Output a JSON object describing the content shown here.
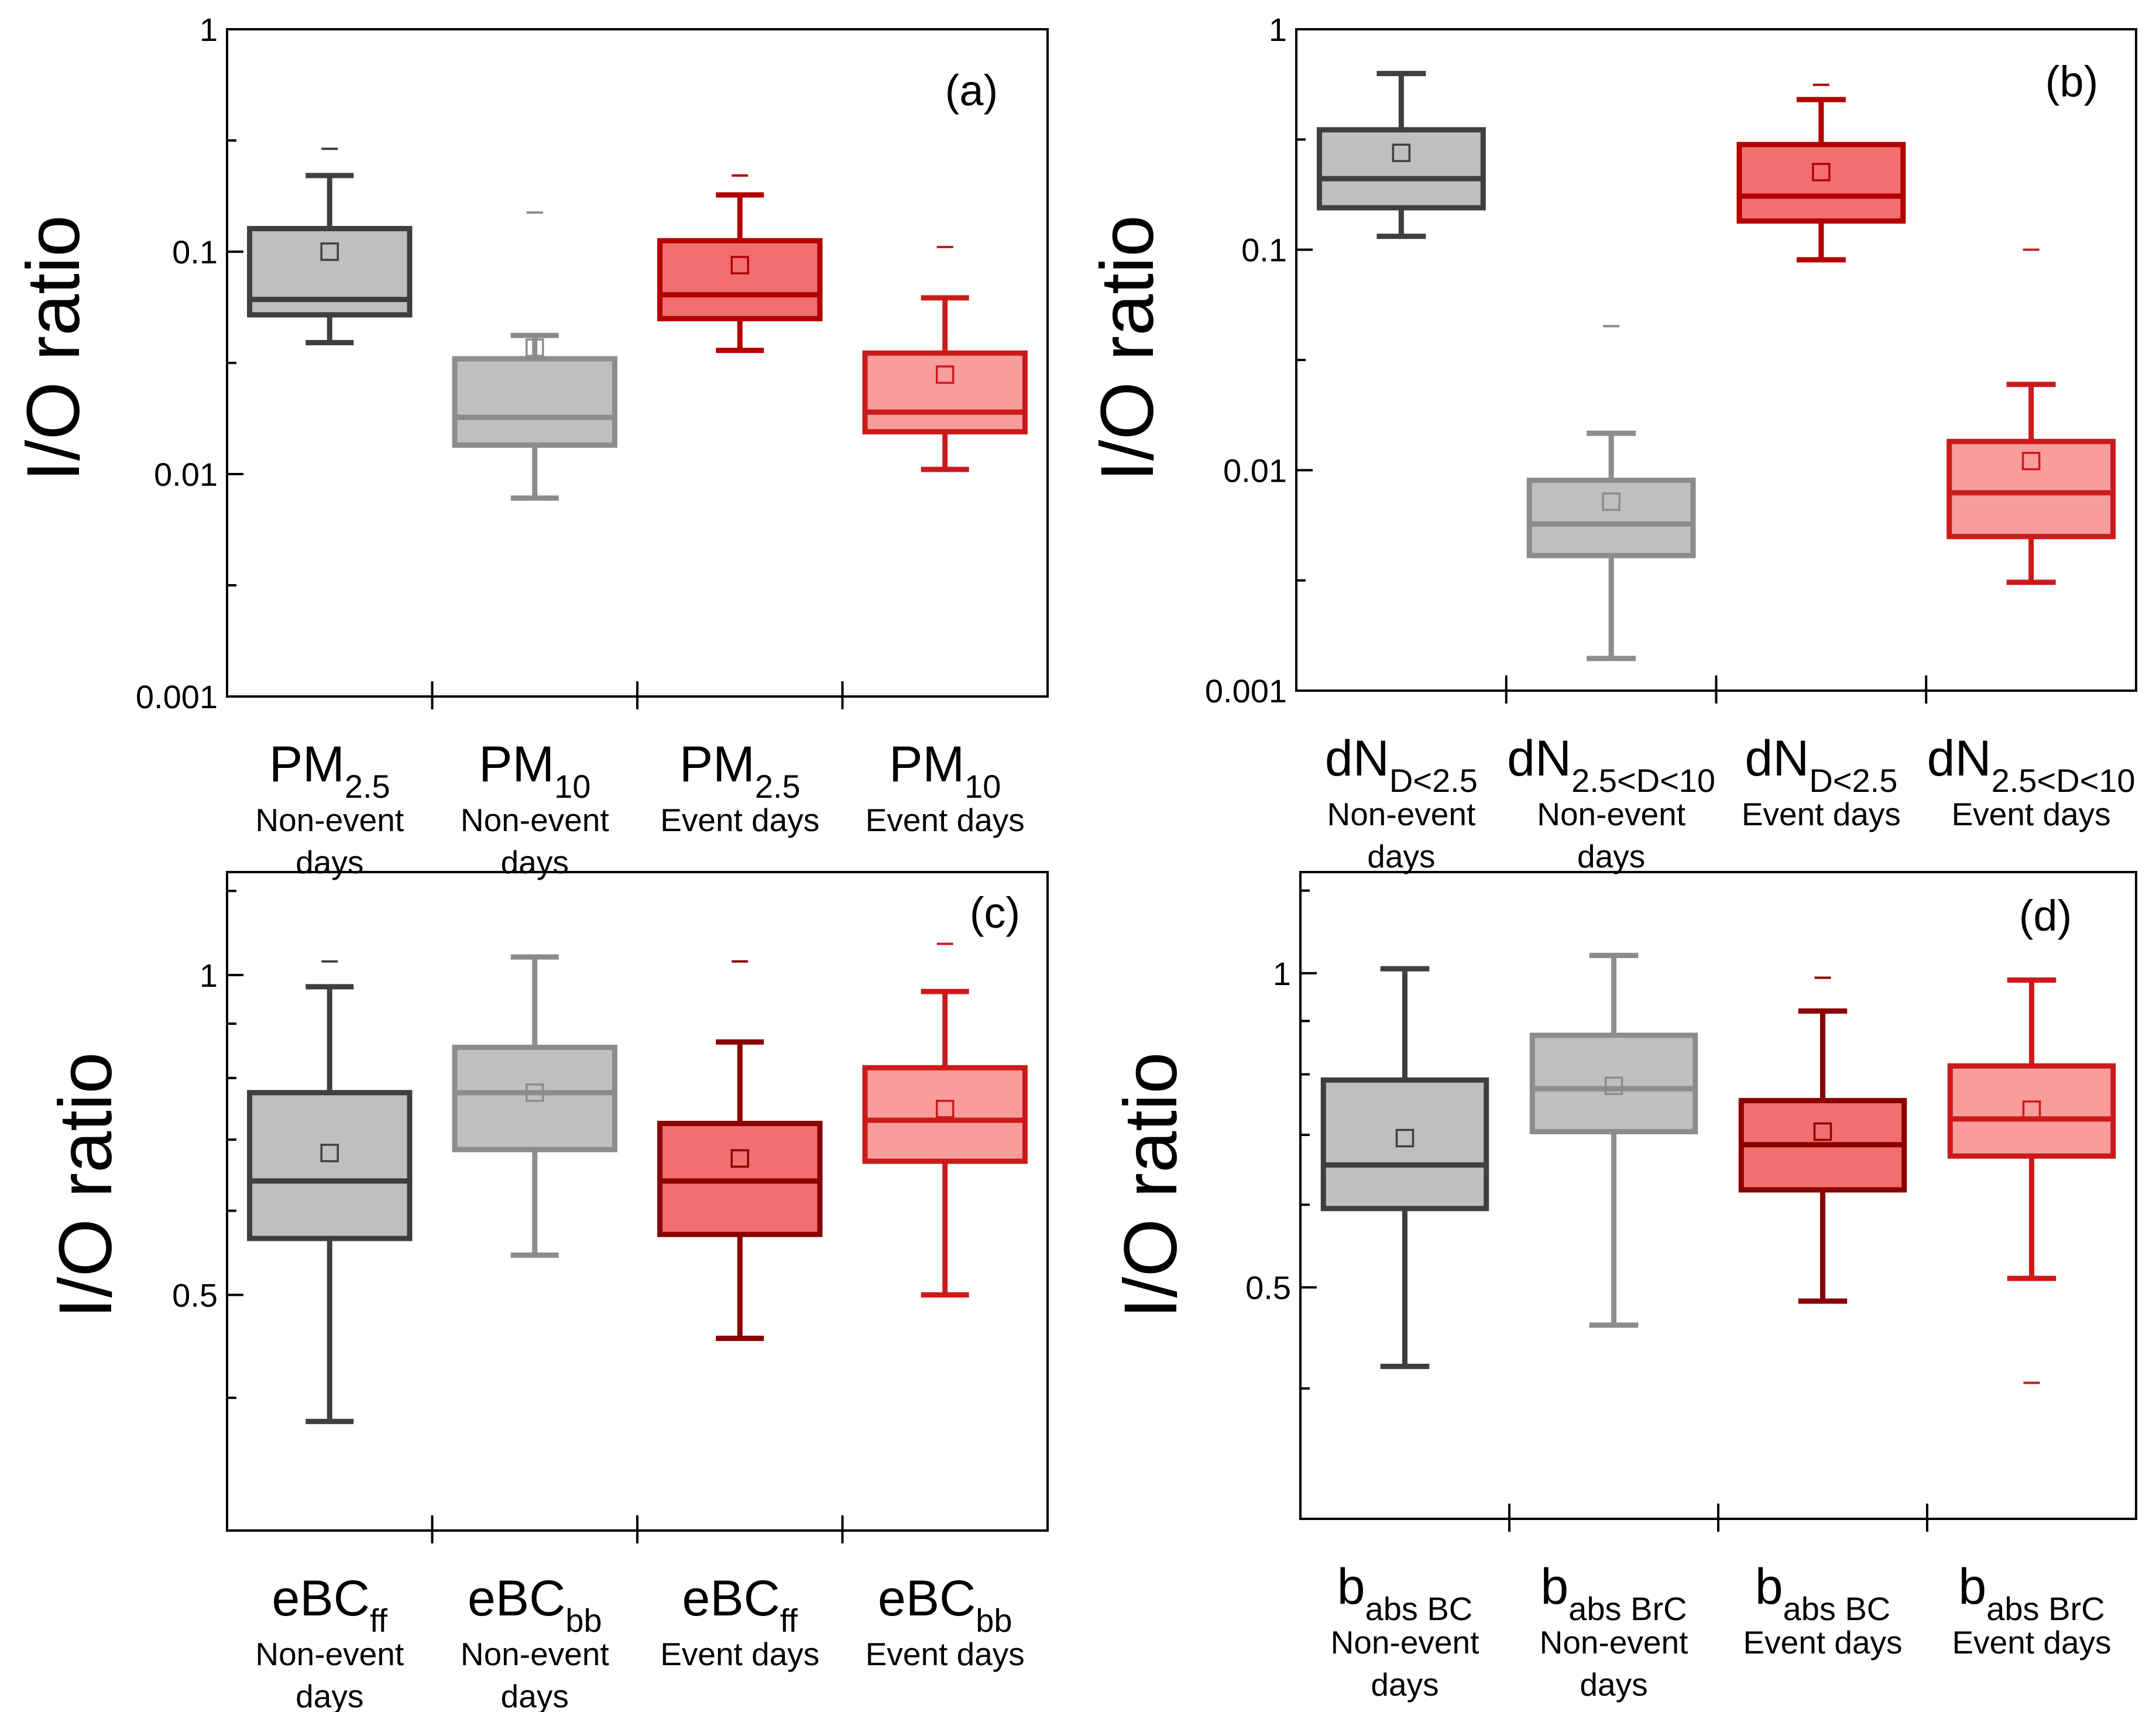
{
  "chart_data": [
    {
      "id": "a",
      "type": "box",
      "panel_label": "(a)",
      "ylabel": "I/O ratio",
      "yscale": "log",
      "ylim": [
        0.001,
        1
      ],
      "yticks": [
        {
          "value": 0.001,
          "label": "0.001"
        },
        {
          "value": 0.01,
          "label": "0.01"
        },
        {
          "value": 0.1,
          "label": "0.1"
        },
        {
          "value": 1,
          "label": "1"
        }
      ],
      "boxes": [
        {
          "main": "PM",
          "sub": "2.5",
          "desc": [
            "Non-event",
            "days"
          ],
          "color": "#3f3f3f",
          "fill": "#bfbfbf",
          "whisker_low": 0.039,
          "q1": 0.052,
          "median": 0.061,
          "q3": 0.127,
          "whisker_high": 0.22,
          "mean": 0.1,
          "outlier_high": 0.29
        },
        {
          "main": "PM",
          "sub": "10",
          "desc": [
            "Non-event",
            "days"
          ],
          "color": "#8c8c8c",
          "fill": "#bfbfbf",
          "whisker_low": 0.0078,
          "q1": 0.0135,
          "median": 0.018,
          "q3": 0.033,
          "whisker_high": 0.042,
          "mean": 0.037,
          "outlier_high": 0.15
        },
        {
          "main": "PM",
          "sub": "2.5",
          "desc": [
            "Event days"
          ],
          "color": "#b30000",
          "fill": "#f26f6f",
          "whisker_low": 0.036,
          "q1": 0.05,
          "median": 0.064,
          "q3": 0.112,
          "whisker_high": 0.18,
          "mean": 0.087,
          "outlier_high": 0.22
        },
        {
          "main": "PM",
          "sub": "10",
          "desc": [
            "Event days"
          ],
          "color": "#cc1a1a",
          "fill": "#f89c9c",
          "whisker_low": 0.0105,
          "q1": 0.0155,
          "median": 0.019,
          "q3": 0.035,
          "whisker_high": 0.062,
          "mean": 0.028,
          "outlier_high": 0.105
        }
      ]
    },
    {
      "id": "b",
      "type": "box",
      "panel_label": "(b)",
      "ylabel": "I/O ratio",
      "yscale": "log",
      "ylim": [
        0.001,
        1
      ],
      "yticks": [
        {
          "value": 0.001,
          "label": "0.001"
        },
        {
          "value": 0.01,
          "label": "0.01"
        },
        {
          "value": 0.1,
          "label": "0.1"
        },
        {
          "value": 1,
          "label": "1"
        }
      ],
      "boxes": [
        {
          "main": "dN",
          "sub": "D<2.5",
          "desc": [
            "Non-event",
            "days"
          ],
          "color": "#3f3f3f",
          "fill": "#bfbfbf",
          "whisker_low": 0.115,
          "q1": 0.155,
          "median": 0.21,
          "q3": 0.35,
          "whisker_high": 0.63,
          "mean": 0.275,
          "outlier_high": null
        },
        {
          "main": "dN",
          "sub": "2.5<D<10",
          "desc": [
            "Non-event",
            "days"
          ],
          "color": "#8c8c8c",
          "fill": "#bfbfbf",
          "whisker_low": 0.0014,
          "q1": 0.0041,
          "median": 0.0057,
          "q3": 0.009,
          "whisker_high": 0.0147,
          "mean": 0.0072,
          "outlier_high": 0.045
        },
        {
          "main": "dN",
          "sub": "D<2.5",
          "desc": [
            "Event days"
          ],
          "color": "#b30000",
          "fill": "#f26f6f",
          "whisker_low": 0.09,
          "q1": 0.135,
          "median": 0.175,
          "q3": 0.3,
          "whisker_high": 0.48,
          "mean": 0.225,
          "outlier_high": 0.56
        },
        {
          "main": "dN",
          "sub": "2.5<D<10",
          "desc": [
            "Event days"
          ],
          "color": "#cc1a1a",
          "fill": "#f89c9c",
          "whisker_low": 0.0031,
          "q1": 0.005,
          "median": 0.0079,
          "q3": 0.0135,
          "whisker_high": 0.0245,
          "mean": 0.011,
          "outlier_high": 0.1
        }
      ]
    },
    {
      "id": "c",
      "type": "box",
      "panel_label": "(c)",
      "ylabel": "I/O ratio",
      "yscale": "log",
      "ylim": [
        0.3,
        1.25
      ],
      "yticks": [
        {
          "value": 0.5,
          "label": "0.5"
        },
        {
          "value": 1,
          "label": "1"
        }
      ],
      "boxes": [
        {
          "main": "eBC",
          "sub": "ff",
          "desc": [
            "Non-event",
            "days"
          ],
          "color": "#3f3f3f",
          "fill": "#bfbfbf",
          "whisker_low": 0.38,
          "q1": 0.565,
          "median": 0.64,
          "q3": 0.775,
          "whisker_high": 0.975,
          "mean": 0.68,
          "outlier_high": 1.03
        },
        {
          "main": "eBC",
          "sub": "bb",
          "desc": [
            "Non-event",
            "days"
          ],
          "color": "#8c8c8c",
          "fill": "#bfbfbf",
          "whisker_low": 0.545,
          "q1": 0.685,
          "median": 0.775,
          "q3": 0.855,
          "whisker_high": 1.04,
          "mean": 0.775,
          "outlier_high": null
        },
        {
          "main": "eBC",
          "sub": "ff",
          "desc": [
            "Event days"
          ],
          "color": "#8b0000",
          "fill": "#f26f6f",
          "whisker_low": 0.455,
          "q1": 0.57,
          "median": 0.64,
          "q3": 0.725,
          "whisker_high": 0.865,
          "mean": 0.672,
          "outlier_high": 1.03
        },
        {
          "main": "eBC",
          "sub": "bb",
          "desc": [
            "Event days"
          ],
          "color": "#cc1a1a",
          "fill": "#f89c9c",
          "whisker_low": 0.5,
          "q1": 0.668,
          "median": 0.73,
          "q3": 0.818,
          "whisker_high": 0.965,
          "mean": 0.748,
          "outlier_high": 1.07
        }
      ]
    },
    {
      "id": "d",
      "type": "box",
      "panel_label": "(d)",
      "ylabel": "I/O ratio",
      "yscale": "log",
      "ylim": [
        0.3,
        1.25
      ],
      "yticks": [
        {
          "value": 0.5,
          "label": "0.5"
        },
        {
          "value": 1,
          "label": "1"
        }
      ],
      "boxes": [
        {
          "main": "b",
          "sub": "abs BC",
          "desc": [
            "Non-event",
            "days"
          ],
          "color": "#3f3f3f",
          "fill": "#bfbfbf",
          "whisker_low": 0.42,
          "q1": 0.595,
          "median": 0.655,
          "q3": 0.79,
          "whisker_high": 1.01,
          "mean": 0.695,
          "outlier_high": null
        },
        {
          "main": "b",
          "sub": "abs BrC",
          "desc": [
            "Non-event",
            "days"
          ],
          "color": "#8c8c8c",
          "fill": "#bfbfbf",
          "whisker_low": 0.46,
          "q1": 0.705,
          "median": 0.775,
          "q3": 0.872,
          "whisker_high": 1.04,
          "mean": 0.78,
          "outlier_high": null
        },
        {
          "main": "b",
          "sub": "abs BC",
          "desc": [
            "Event days"
          ],
          "color": "#8b0000",
          "fill": "#f26f6f",
          "whisker_low": 0.485,
          "q1": 0.62,
          "median": 0.685,
          "q3": 0.755,
          "whisker_high": 0.92,
          "mean": 0.705,
          "outlier_high": 0.99
        },
        {
          "main": "b",
          "sub": "abs BrC",
          "desc": [
            "Event days"
          ],
          "color": "#cc1a1a",
          "fill": "#f89c9c",
          "whisker_low": 0.51,
          "q1": 0.668,
          "median": 0.725,
          "q3": 0.815,
          "whisker_high": 0.985,
          "mean": 0.74,
          "outlier_high": 0.405
        }
      ]
    }
  ]
}
